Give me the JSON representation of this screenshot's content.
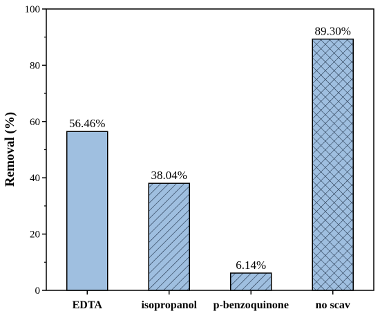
{
  "chart_data": {
    "type": "bar",
    "categories": [
      "EDTA",
      "isopropanol",
      "p-benzoquinone",
      "no scav"
    ],
    "values": [
      56.46,
      38.04,
      6.14,
      89.3
    ],
    "data_labels": [
      "56.46%",
      "38.04%",
      "6.14%",
      "89.30%"
    ],
    "patterns": [
      "solid",
      "hatch-diagonal-down",
      "hatch-diagonal-down-wide",
      "crosshatch"
    ],
    "ylabel": "Removal (%)",
    "xlabel": "",
    "ylim": [
      0,
      100
    ],
    "yticks": [
      0,
      20,
      40,
      60,
      80,
      100
    ],
    "grid": false,
    "colors": {
      "bar_fill": "#9fbfe0",
      "bar_stroke": "#000000",
      "hatch": "#1f2f45"
    }
  }
}
